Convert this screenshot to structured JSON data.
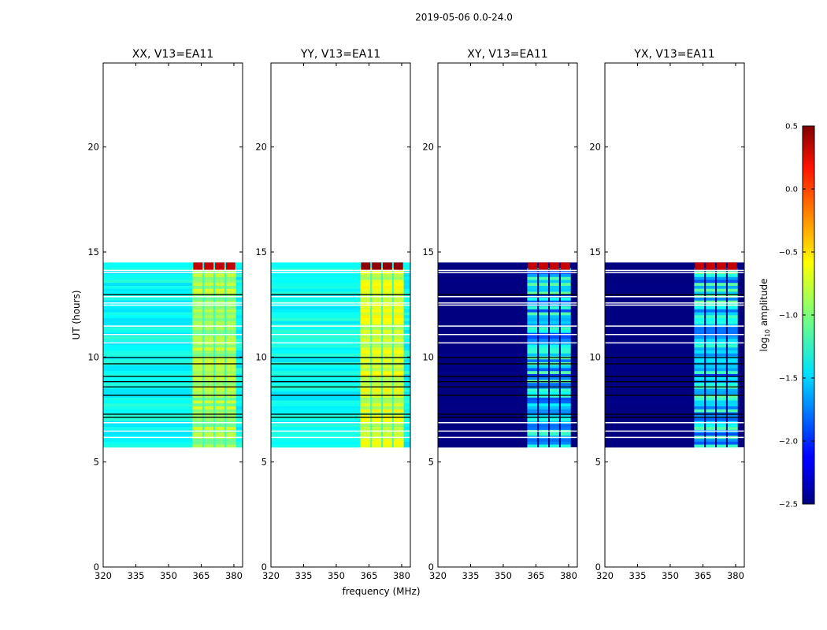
{
  "figure": {
    "suptitle": "2019-05-06 0.0-24.0",
    "ylabel": "UT (hours)",
    "xlabel": "frequency (MHz)"
  },
  "chart_data": {
    "type": "heatmap",
    "xlim": [
      320,
      384
    ],
    "ylim": [
      0,
      24
    ],
    "xticks": [
      320,
      335,
      350,
      365,
      380
    ],
    "yticks": [
      0,
      5,
      10,
      15,
      20
    ],
    "data_time_range_hours": [
      5.7,
      14.5
    ],
    "band_structure_mhz": {
      "flat_region": [
        320,
        361
      ],
      "band_edges": [
        361,
        366,
        371,
        376,
        381
      ],
      "vertical_gaps": [
        366,
        371,
        376
      ]
    },
    "flagged_rows_hours_white": [
      14.05,
      14.15,
      12.6,
      12.5,
      12.9,
      11.5,
      11.1,
      10.7,
      6.2,
      6.5,
      6.9
    ],
    "flagged_rows_hours_black": [
      13.0,
      10.0,
      9.7,
      9.1,
      8.85,
      8.6,
      8.2,
      7.3,
      7.15
    ],
    "panels": [
      {
        "title": "XX, V13=EA11",
        "base_level": -1.35,
        "band_level": -0.9,
        "top_level": 0.3,
        "dark_background": false
      },
      {
        "title": "YY, V13=EA11",
        "base_level": -1.35,
        "band_level": -0.75,
        "top_level": 0.45,
        "dark_background": false
      },
      {
        "title": "XY, V13=EA11",
        "base_level": -2.5,
        "band_level": -1.5,
        "top_level": 0.3,
        "dark_background": true
      },
      {
        "title": "YX, V13=EA11",
        "base_level": -2.5,
        "band_level": -1.5,
        "top_level": 0.3,
        "dark_background": true
      }
    ],
    "colorbar": {
      "label_prefix": "log",
      "label_subscript": "10",
      "label_suffix": " amplitude",
      "range": [
        -2.5,
        0.5
      ],
      "ticks": [
        "0.5",
        "0.0",
        "−0.5",
        "−1.0",
        "−1.5",
        "−2.0",
        "−2.5"
      ],
      "tick_values": [
        0.5,
        0.0,
        -0.5,
        -1.0,
        -1.5,
        -2.0,
        -2.5
      ],
      "colormap": "jet"
    }
  }
}
